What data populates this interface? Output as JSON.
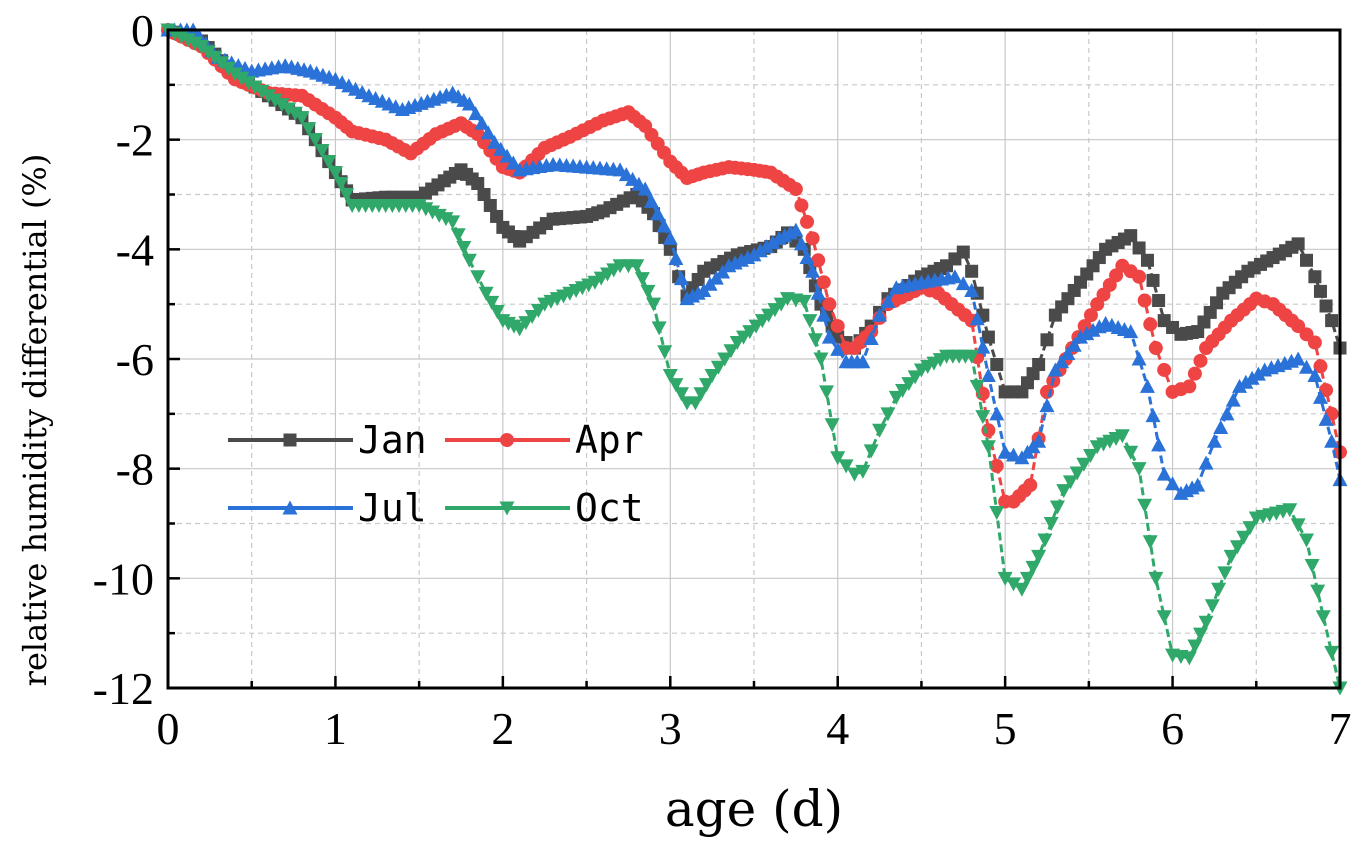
{
  "chart_data": {
    "type": "line",
    "title": "",
    "xlabel": "age (d)",
    "ylabel": "relative humidity differential (%)",
    "xlim": [
      0,
      7
    ],
    "ylim": [
      -12,
      0
    ],
    "xticks": [
      "0",
      "1",
      "2",
      "3",
      "4",
      "5",
      "6",
      "7"
    ],
    "yticks": [
      "0",
      "-2",
      "-4",
      "-6",
      "-8",
      "-10",
      "-12"
    ],
    "grid": true,
    "legend_position": "lower-left",
    "series": [
      {
        "name": "Jan",
        "color": "#4a4a4a",
        "marker": "square",
        "points": [
          [
            0,
            0
          ],
          [
            0.2,
            -0.2
          ],
          [
            0.4,
            -0.8
          ],
          [
            0.6,
            -1.2
          ],
          [
            0.8,
            -1.6
          ],
          [
            1.0,
            -2.6
          ],
          [
            1.1,
            -3.1
          ],
          [
            1.3,
            -3.05
          ],
          [
            1.5,
            -3.05
          ],
          [
            1.65,
            -2.75
          ],
          [
            1.75,
            -2.55
          ],
          [
            1.85,
            -2.8
          ],
          [
            2.0,
            -3.6
          ],
          [
            2.1,
            -3.85
          ],
          [
            2.3,
            -3.45
          ],
          [
            2.5,
            -3.4
          ],
          [
            2.6,
            -3.3
          ],
          [
            2.8,
            -3.0
          ],
          [
            2.9,
            -3.35
          ],
          [
            3.0,
            -4.0
          ],
          [
            3.05,
            -4.5
          ],
          [
            3.1,
            -4.85
          ],
          [
            3.2,
            -4.4
          ],
          [
            3.4,
            -4.1
          ],
          [
            3.6,
            -3.95
          ],
          [
            3.7,
            -3.7
          ],
          [
            3.8,
            -4.0
          ],
          [
            3.9,
            -5.0
          ],
          [
            4.0,
            -5.6
          ],
          [
            4.1,
            -5.8
          ],
          [
            4.2,
            -5.4
          ],
          [
            4.3,
            -4.9
          ],
          [
            4.5,
            -4.5
          ],
          [
            4.65,
            -4.3
          ],
          [
            4.75,
            -4.05
          ],
          [
            4.8,
            -4.4
          ],
          [
            4.9,
            -5.6
          ],
          [
            5.0,
            -6.6
          ],
          [
            5.1,
            -6.6
          ],
          [
            5.2,
            -6.1
          ],
          [
            5.3,
            -5.2
          ],
          [
            5.45,
            -4.6
          ],
          [
            5.6,
            -4.0
          ],
          [
            5.75,
            -3.75
          ],
          [
            5.85,
            -4.2
          ],
          [
            5.95,
            -5.3
          ],
          [
            6.05,
            -5.55
          ],
          [
            6.15,
            -5.5
          ],
          [
            6.3,
            -4.8
          ],
          [
            6.45,
            -4.4
          ],
          [
            6.6,
            -4.15
          ],
          [
            6.75,
            -3.9
          ],
          [
            6.85,
            -4.5
          ],
          [
            6.95,
            -5.3
          ],
          [
            7.0,
            -5.8
          ]
        ]
      },
      {
        "name": "Apr",
        "color": "#ee4444",
        "marker": "circle",
        "points": [
          [
            0,
            0
          ],
          [
            0.2,
            -0.3
          ],
          [
            0.4,
            -0.9
          ],
          [
            0.6,
            -1.15
          ],
          [
            0.8,
            -1.2
          ],
          [
            1.0,
            -1.6
          ],
          [
            1.1,
            -1.85
          ],
          [
            1.3,
            -2.0
          ],
          [
            1.45,
            -2.25
          ],
          [
            1.6,
            -1.9
          ],
          [
            1.75,
            -1.7
          ],
          [
            1.85,
            -1.9
          ],
          [
            2.0,
            -2.5
          ],
          [
            2.1,
            -2.6
          ],
          [
            2.25,
            -2.15
          ],
          [
            2.4,
            -1.95
          ],
          [
            2.6,
            -1.65
          ],
          [
            2.75,
            -1.5
          ],
          [
            2.85,
            -1.75
          ],
          [
            3.0,
            -2.4
          ],
          [
            3.1,
            -2.7
          ],
          [
            3.2,
            -2.6
          ],
          [
            3.35,
            -2.5
          ],
          [
            3.5,
            -2.55
          ],
          [
            3.6,
            -2.6
          ],
          [
            3.75,
            -2.9
          ],
          [
            3.85,
            -3.8
          ],
          [
            3.95,
            -5.0
          ],
          [
            4.05,
            -5.8
          ],
          [
            4.1,
            -5.8
          ],
          [
            4.2,
            -5.5
          ],
          [
            4.3,
            -5.0
          ],
          [
            4.5,
            -4.7
          ],
          [
            4.6,
            -4.8
          ],
          [
            4.8,
            -5.3
          ],
          [
            4.9,
            -7.3
          ],
          [
            5.0,
            -8.6
          ],
          [
            5.05,
            -8.6
          ],
          [
            5.15,
            -8.3
          ],
          [
            5.25,
            -6.6
          ],
          [
            5.4,
            -5.8
          ],
          [
            5.55,
            -5.0
          ],
          [
            5.7,
            -4.3
          ],
          [
            5.8,
            -4.5
          ],
          [
            5.9,
            -5.8
          ],
          [
            6.0,
            -6.6
          ],
          [
            6.1,
            -6.5
          ],
          [
            6.2,
            -5.8
          ],
          [
            6.35,
            -5.3
          ],
          [
            6.5,
            -4.9
          ],
          [
            6.6,
            -5.0
          ],
          [
            6.75,
            -5.4
          ],
          [
            6.85,
            -5.7
          ],
          [
            6.95,
            -7.0
          ],
          [
            7.0,
            -7.7
          ]
        ]
      },
      {
        "name": "Jul",
        "color": "#2a72d8",
        "marker": "triangle-up",
        "points": [
          [
            0,
            0
          ],
          [
            0.15,
            0
          ],
          [
            0.3,
            -0.5
          ],
          [
            0.5,
            -0.75
          ],
          [
            0.7,
            -0.65
          ],
          [
            0.85,
            -0.75
          ],
          [
            1.0,
            -0.9
          ],
          [
            1.2,
            -1.2
          ],
          [
            1.4,
            -1.45
          ],
          [
            1.55,
            -1.3
          ],
          [
            1.7,
            -1.15
          ],
          [
            1.8,
            -1.35
          ],
          [
            1.95,
            -2.05
          ],
          [
            2.1,
            -2.55
          ],
          [
            2.3,
            -2.45
          ],
          [
            2.5,
            -2.5
          ],
          [
            2.7,
            -2.55
          ],
          [
            2.85,
            -2.9
          ],
          [
            3.0,
            -3.8
          ],
          [
            3.1,
            -4.9
          ],
          [
            3.2,
            -4.75
          ],
          [
            3.35,
            -4.3
          ],
          [
            3.5,
            -4.1
          ],
          [
            3.65,
            -3.8
          ],
          [
            3.75,
            -3.65
          ],
          [
            3.85,
            -4.4
          ],
          [
            3.95,
            -5.6
          ],
          [
            4.05,
            -6.05
          ],
          [
            4.15,
            -6.05
          ],
          [
            4.25,
            -5.2
          ],
          [
            4.35,
            -4.7
          ],
          [
            4.5,
            -4.6
          ],
          [
            4.7,
            -4.5
          ],
          [
            4.8,
            -4.75
          ],
          [
            4.9,
            -6.3
          ],
          [
            5.0,
            -7.7
          ],
          [
            5.1,
            -7.8
          ],
          [
            5.2,
            -7.5
          ],
          [
            5.3,
            -6.2
          ],
          [
            5.45,
            -5.6
          ],
          [
            5.6,
            -5.35
          ],
          [
            5.75,
            -5.5
          ],
          [
            5.85,
            -6.5
          ],
          [
            5.95,
            -8.1
          ],
          [
            6.05,
            -8.45
          ],
          [
            6.15,
            -8.3
          ],
          [
            6.25,
            -7.5
          ],
          [
            6.4,
            -6.5
          ],
          [
            6.55,
            -6.2
          ],
          [
            6.75,
            -6.0
          ],
          [
            6.85,
            -6.3
          ],
          [
            6.95,
            -7.5
          ],
          [
            7.0,
            -8.2
          ]
        ]
      },
      {
        "name": "Oct",
        "color": "#2fa86a",
        "marker": "triangle-down",
        "points": [
          [
            0,
            0
          ],
          [
            0.2,
            -0.3
          ],
          [
            0.4,
            -0.8
          ],
          [
            0.6,
            -1.2
          ],
          [
            0.8,
            -1.6
          ],
          [
            1.0,
            -2.6
          ],
          [
            1.1,
            -3.2
          ],
          [
            1.3,
            -3.2
          ],
          [
            1.5,
            -3.2
          ],
          [
            1.7,
            -3.5
          ],
          [
            1.8,
            -4.2
          ],
          [
            1.9,
            -4.8
          ],
          [
            2.0,
            -5.3
          ],
          [
            2.1,
            -5.45
          ],
          [
            2.25,
            -5.0
          ],
          [
            2.4,
            -4.8
          ],
          [
            2.55,
            -4.6
          ],
          [
            2.7,
            -4.3
          ],
          [
            2.8,
            -4.3
          ],
          [
            2.9,
            -5.0
          ],
          [
            3.0,
            -6.3
          ],
          [
            3.1,
            -6.8
          ],
          [
            3.15,
            -6.8
          ],
          [
            3.25,
            -6.3
          ],
          [
            3.4,
            -5.7
          ],
          [
            3.55,
            -5.3
          ],
          [
            3.7,
            -4.9
          ],
          [
            3.8,
            -4.95
          ],
          [
            3.9,
            -6.0
          ],
          [
            4.0,
            -7.8
          ],
          [
            4.1,
            -8.1
          ],
          [
            4.15,
            -8.05
          ],
          [
            4.25,
            -7.3
          ],
          [
            4.35,
            -6.7
          ],
          [
            4.5,
            -6.2
          ],
          [
            4.65,
            -5.95
          ],
          [
            4.8,
            -5.95
          ],
          [
            4.9,
            -7.6
          ],
          [
            5.0,
            -10.0
          ],
          [
            5.1,
            -10.2
          ],
          [
            5.2,
            -9.6
          ],
          [
            5.35,
            -8.4
          ],
          [
            5.55,
            -7.6
          ],
          [
            5.7,
            -7.4
          ],
          [
            5.8,
            -8.0
          ],
          [
            5.9,
            -10.0
          ],
          [
            6.0,
            -11.4
          ],
          [
            6.1,
            -11.45
          ],
          [
            6.2,
            -10.8
          ],
          [
            6.35,
            -9.6
          ],
          [
            6.5,
            -8.9
          ],
          [
            6.7,
            -8.75
          ],
          [
            6.8,
            -9.3
          ],
          [
            6.9,
            -10.7
          ],
          [
            7.0,
            -12.0
          ]
        ]
      }
    ]
  }
}
